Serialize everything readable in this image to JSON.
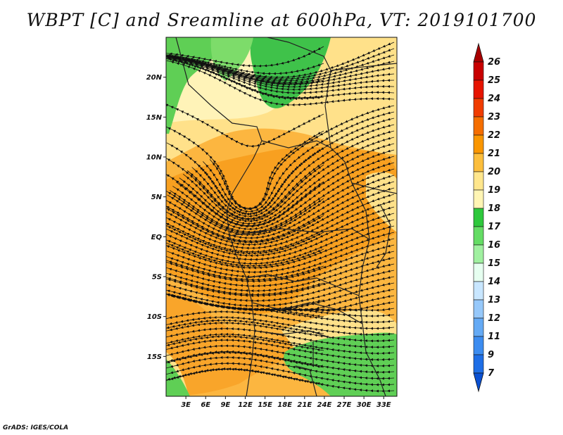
{
  "title": "WBPT [C] and Sreamline at 600hPa, VT: 2019101700",
  "footer": "GrADS: IGES/COLA",
  "chart_data": {
    "type": "heatmap",
    "variable": "WBPT [C]",
    "overlay": "Streamline",
    "level": "600hPa",
    "valid_time": "2019101700",
    "lon_range": [
      0,
      35
    ],
    "lat_range": [
      -20,
      25
    ],
    "lat_ticks": [
      {
        "value": 20,
        "label": "20N"
      },
      {
        "value": 15,
        "label": "15N"
      },
      {
        "value": 10,
        "label": "10N"
      },
      {
        "value": 5,
        "label": "5N"
      },
      {
        "value": 0,
        "label": "EQ"
      },
      {
        "value": -5,
        "label": "5S"
      },
      {
        "value": -10,
        "label": "10S"
      },
      {
        "value": -15,
        "label": "15S"
      }
    ],
    "lon_ticks": [
      {
        "value": 3,
        "label": "3E"
      },
      {
        "value": 6,
        "label": "6E"
      },
      {
        "value": 9,
        "label": "9E"
      },
      {
        "value": 12,
        "label": "12E"
      },
      {
        "value": 15,
        "label": "15E"
      },
      {
        "value": 18,
        "label": "18E"
      },
      {
        "value": 21,
        "label": "21E"
      },
      {
        "value": 24,
        "label": "24E"
      },
      {
        "value": 27,
        "label": "27E"
      },
      {
        "value": 30,
        "label": "30E"
      },
      {
        "value": 33,
        "label": "33E"
      }
    ],
    "colorbar": {
      "labels": [
        "26",
        "25",
        "24",
        "23",
        "22",
        "21",
        "20",
        "19",
        "18",
        "17",
        "16",
        "15",
        "14",
        "13",
        "12",
        "11",
        "9",
        "7"
      ],
      "colors": [
        "#a80000",
        "#c80000",
        "#e61400",
        "#f03c00",
        "#f56e00",
        "#fa9600",
        "#fcbe3c",
        "#ffe68c",
        "#fff5b4",
        "#2ec83c",
        "#64dc64",
        "#a0f0a0",
        "#e6fff0",
        "#c8e6ff",
        "#96c8fa",
        "#64aaf5",
        "#3c8cf0",
        "#1e6ee6",
        "#0a50d2"
      ]
    }
  }
}
